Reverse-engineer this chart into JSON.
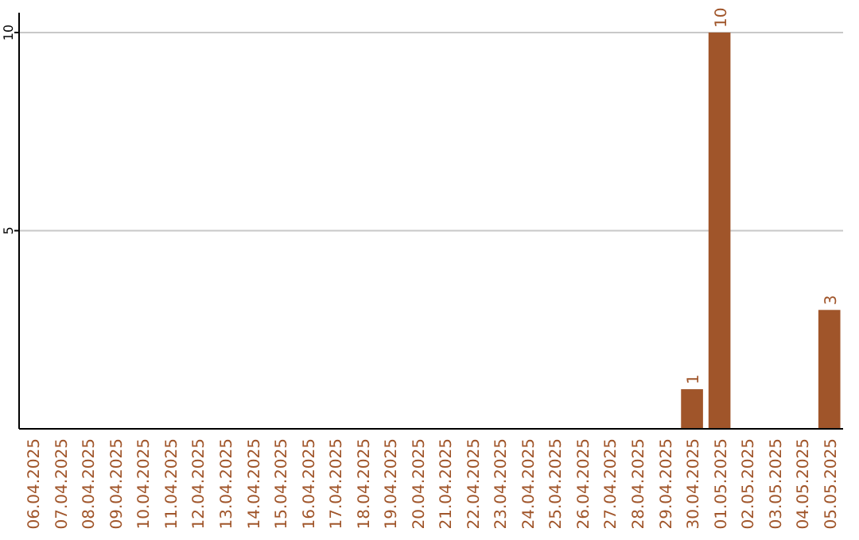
{
  "chart_data": {
    "type": "bar",
    "categories": [
      "06.04.2025",
      "07.04.2025",
      "08.04.2025",
      "09.04.2025",
      "10.04.2025",
      "11.04.2025",
      "12.04.2025",
      "13.04.2025",
      "14.04.2025",
      "15.04.2025",
      "16.04.2025",
      "17.04.2025",
      "18.04.2025",
      "19.04.2025",
      "20.04.2025",
      "21.04.2025",
      "22.04.2025",
      "23.04.2025",
      "24.04.2025",
      "25.04.2025",
      "26.04.2025",
      "27.04.2025",
      "28.04.2025",
      "29.04.2025",
      "30.04.2025",
      "01.05.2025",
      "02.05.2025",
      "03.05.2025",
      "04.05.2025",
      "05.05.2025"
    ],
    "values": [
      0,
      0,
      0,
      0,
      0,
      0,
      0,
      0,
      0,
      0,
      0,
      0,
      0,
      0,
      0,
      0,
      0,
      0,
      0,
      0,
      0,
      0,
      0,
      0,
      1,
      10,
      0,
      0,
      0,
      3
    ],
    "value_labels": [
      null,
      null,
      null,
      null,
      null,
      null,
      null,
      null,
      null,
      null,
      null,
      null,
      null,
      null,
      null,
      null,
      null,
      null,
      null,
      null,
      null,
      null,
      null,
      null,
      "1",
      "10",
      null,
      null,
      null,
      "3"
    ],
    "color": "#a0552a",
    "ylim": [
      0,
      10.5
    ],
    "yticks": [
      5,
      10
    ],
    "grid": "y"
  }
}
